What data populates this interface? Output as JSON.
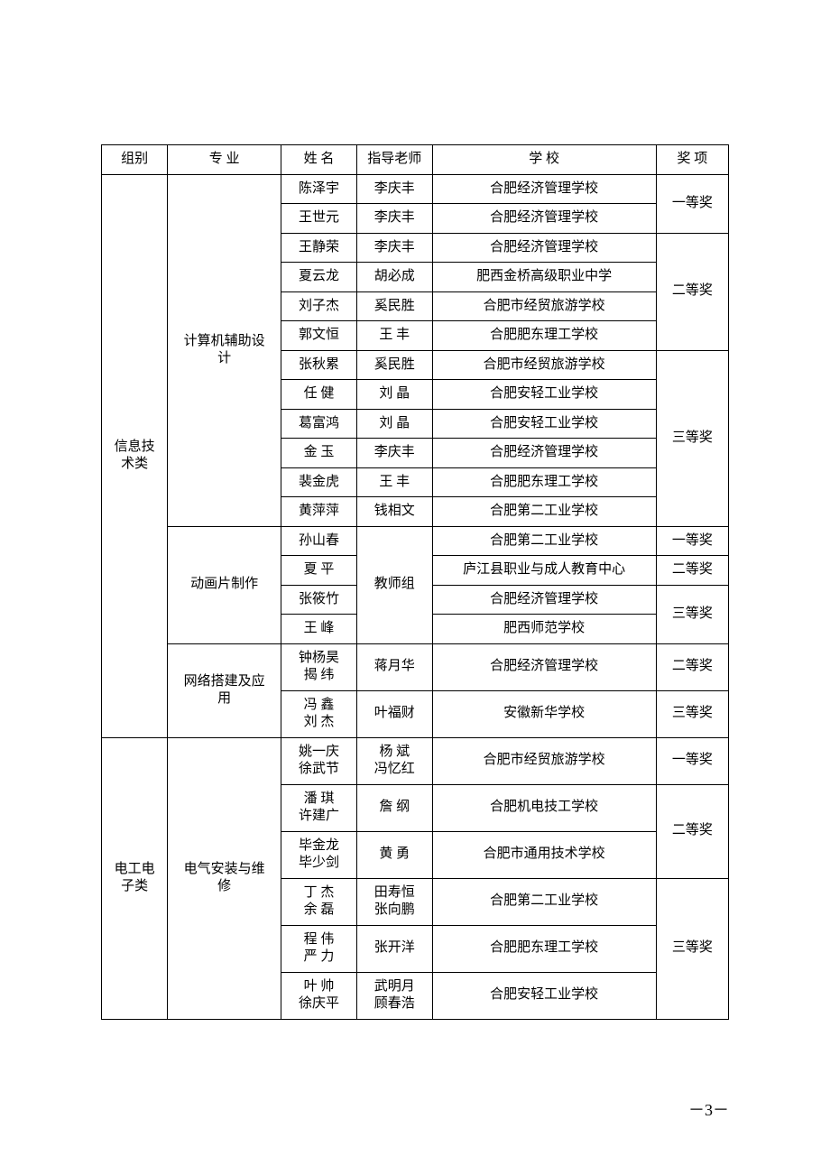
{
  "columns": {
    "group": "组别",
    "major": "专 业",
    "name": "姓 名",
    "teacher": "指导老师",
    "school": "学 校",
    "award": "奖 项"
  },
  "groups": [
    {
      "label": "信息技\n术类",
      "majors": [
        {
          "label": "计算机辅助设\n计",
          "rows": [
            {
              "name": "陈泽宇",
              "teacher": "李庆丰",
              "school": "合肥经济管理学校"
            },
            {
              "name": "王世元",
              "teacher": "李庆丰",
              "school": "合肥经济管理学校"
            },
            {
              "name": "王静荣",
              "teacher": "李庆丰",
              "school": "合肥经济管理学校"
            },
            {
              "name": "夏云龙",
              "teacher": "胡必成",
              "school": "肥西金桥高级职业中学"
            },
            {
              "name": "刘子杰",
              "teacher": "奚民胜",
              "school": "合肥市经贸旅游学校"
            },
            {
              "name": "郭文恒",
              "teacher": "王 丰",
              "school": "合肥肥东理工学校"
            },
            {
              "name": "张秋累",
              "teacher": "奚民胜",
              "school": "合肥市经贸旅游学校"
            },
            {
              "name": "任 健",
              "teacher": "刘 晶",
              "school": "合肥安轻工业学校"
            },
            {
              "name": "葛富鸿",
              "teacher": "刘 晶",
              "school": "合肥安轻工业学校"
            },
            {
              "name": "金 玉",
              "teacher": "李庆丰",
              "school": "合肥经济管理学校"
            },
            {
              "name": "裴金虎",
              "teacher": "王 丰",
              "school": "合肥肥东理工学校"
            },
            {
              "name": "黄萍萍",
              "teacher": "钱相文",
              "school": "合肥第二工业学校"
            }
          ],
          "award_spans": [
            {
              "label": "一等奖",
              "span": 2
            },
            {
              "label": "二等奖",
              "span": 4
            },
            {
              "label": "三等奖",
              "span": 6
            }
          ]
        },
        {
          "label": "动画片制作",
          "teacher_merged": "教师组",
          "rows": [
            {
              "name": "孙山春",
              "school": "合肥第二工业学校"
            },
            {
              "name": "夏 平",
              "school": "庐江县职业与成人教育中心"
            },
            {
              "name": "张筱竹",
              "school": "合肥经济管理学校"
            },
            {
              "name": "王 峰",
              "school": "肥西师范学校"
            }
          ],
          "award_spans": [
            {
              "label": "一等奖",
              "span": 1
            },
            {
              "label": "二等奖",
              "span": 1
            },
            {
              "label": "三等奖",
              "span": 2
            }
          ]
        },
        {
          "label": "网络搭建及应\n用",
          "rows": [
            {
              "name": "钟杨昊\n揭 纬",
              "teacher": "蒋月华",
              "school": "合肥经济管理学校"
            },
            {
              "name": "冯 鑫\n刘 杰",
              "teacher": "叶福财",
              "school": "安徽新华学校"
            }
          ],
          "award_spans": [
            {
              "label": "二等奖",
              "span": 1
            },
            {
              "label": "三等奖",
              "span": 1
            }
          ]
        }
      ]
    },
    {
      "label": "电工电\n子类",
      "majors": [
        {
          "label": "电气安装与维\n修",
          "rows": [
            {
              "name": "姚一庆\n徐武节",
              "teacher": "杨 斌\n冯忆红",
              "school": "合肥市经贸旅游学校"
            },
            {
              "name": "潘 琪\n许建广",
              "teacher": "詹 纲",
              "school": "合肥机电技工学校"
            },
            {
              "name": "毕金龙\n毕少剑",
              "teacher": "黄 勇",
              "school": "合肥市通用技术学校"
            },
            {
              "name": "丁 杰\n余 磊",
              "teacher": "田寿恒\n张向鹏",
              "school": "合肥第二工业学校"
            },
            {
              "name": "程 伟\n严 力",
              "teacher": "张开洋",
              "school": "合肥肥东理工学校"
            },
            {
              "name": "叶 帅\n徐庆平",
              "teacher": "武明月\n顾春浩",
              "school": "合肥安轻工业学校"
            }
          ],
          "award_spans": [
            {
              "label": "一等奖",
              "span": 1
            },
            {
              "label": "二等奖",
              "span": 2
            },
            {
              "label": "三等奖",
              "span": 3
            }
          ]
        }
      ]
    }
  ],
  "page_number": "－3－"
}
